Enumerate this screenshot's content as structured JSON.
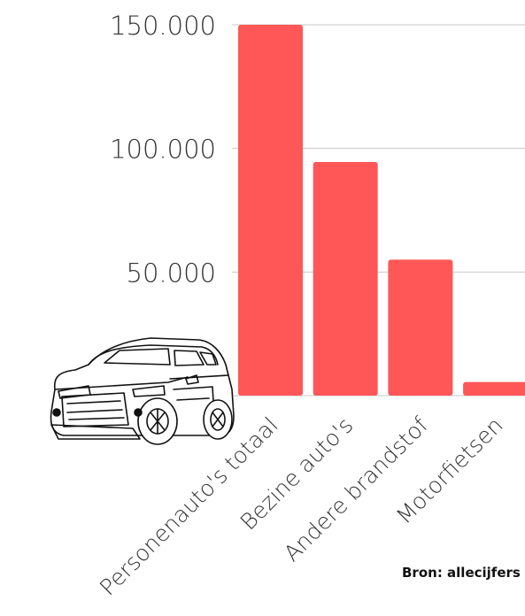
{
  "chart_data": {
    "type": "bar",
    "categories": [
      "Personenauto's totaal",
      "Bezine auto's",
      "Andere brandstof",
      "Motorfietsen"
    ],
    "values": [
      150000,
      94500,
      55000,
      5500
    ],
    "ylim": [
      0,
      150000
    ],
    "yticks": [
      50000,
      100000,
      150000
    ],
    "ytick_labels": [
      "50.000",
      "100.000",
      "150.000"
    ],
    "grid": true,
    "colors": {
      "bar": "#FF5757",
      "grid": "#c8c8c8",
      "text": "#333333"
    }
  },
  "source_text": "Bron: allecijfers",
  "illustration": {
    "icon": "car-suv-icon"
  }
}
